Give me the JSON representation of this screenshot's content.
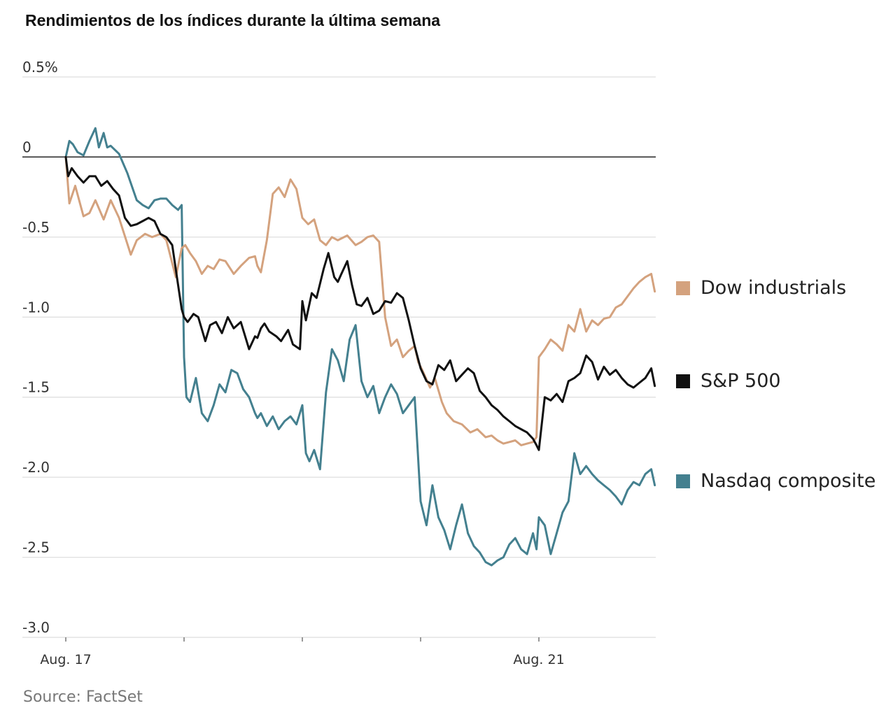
{
  "title": "Rendimientos de los índices durante la última semana",
  "source": "Source: FactSet",
  "colors": {
    "dow": "#d4a27e",
    "sp500": "#111111",
    "nasdaq": "#44808f",
    "grid": "#dddddd",
    "zero": "#222222"
  },
  "chart_data": {
    "type": "line",
    "title": "Rendimientos de los índices durante la última semana",
    "xlabel": "",
    "ylabel": "",
    "ylim": [
      -3.0,
      0.5
    ],
    "y_ticks": [
      "0.5%",
      "0",
      "-0.5",
      "-1.0",
      "-1.5",
      "-2.0",
      "-2.5",
      "-3.0"
    ],
    "y_tick_values": [
      0.5,
      0,
      -0.5,
      -1.0,
      -1.5,
      -2.0,
      -2.5,
      -3.0
    ],
    "x_domain": [
      0,
      5
    ],
    "x_tick_labels": [
      "Aug. 17",
      "",
      "",
      "",
      "Aug. 21"
    ],
    "x_tick_values": [
      0,
      1,
      2,
      3,
      4
    ],
    "grid": true,
    "legend_position": "right",
    "series": [
      {
        "name": "Dow industrials",
        "key": "dow",
        "x": [
          0,
          0.03,
          0.08,
          0.15,
          0.2,
          0.25,
          0.32,
          0.38,
          0.45,
          0.55,
          0.6,
          0.67,
          0.73,
          0.8,
          0.85,
          0.93,
          0.98,
          1.01,
          1.05,
          1.1,
          1.15,
          1.2,
          1.25,
          1.3,
          1.35,
          1.42,
          1.48,
          1.55,
          1.6,
          1.62,
          1.65,
          1.7,
          1.75,
          1.8,
          1.85,
          1.9,
          1.95,
          2.0,
          2.05,
          2.1,
          2.15,
          2.2,
          2.25,
          2.3,
          2.38,
          2.45,
          2.5,
          2.55,
          2.6,
          2.65,
          2.7,
          2.75,
          2.8,
          2.85,
          2.9,
          2.95,
          2.98,
          3.02,
          3.08,
          3.12,
          3.18,
          3.22,
          3.28,
          3.35,
          3.42,
          3.48,
          3.55,
          3.6,
          3.65,
          3.7,
          3.75,
          3.8,
          3.85,
          3.9,
          3.95,
          3.98,
          4.0,
          4.05,
          4.1,
          4.15,
          4.2,
          4.25,
          4.3,
          4.35,
          4.4,
          4.45,
          4.5,
          4.55,
          4.6,
          4.65,
          4.7,
          4.75,
          4.8,
          4.85,
          4.9,
          4.95,
          4.98
        ],
        "values": [
          0,
          -0.29,
          -0.18,
          -0.37,
          -0.35,
          -0.27,
          -0.39,
          -0.27,
          -0.38,
          -0.61,
          -0.52,
          -0.48,
          -0.5,
          -0.48,
          -0.52,
          -0.75,
          -0.57,
          -0.55,
          -0.6,
          -0.65,
          -0.73,
          -0.68,
          -0.7,
          -0.64,
          -0.65,
          -0.73,
          -0.68,
          -0.63,
          -0.62,
          -0.68,
          -0.72,
          -0.52,
          -0.23,
          -0.19,
          -0.25,
          -0.14,
          -0.2,
          -0.38,
          -0.42,
          -0.39,
          -0.52,
          -0.55,
          -0.5,
          -0.52,
          -0.49,
          -0.55,
          -0.53,
          -0.5,
          -0.49,
          -0.53,
          -1.0,
          -1.18,
          -1.14,
          -1.25,
          -1.21,
          -1.18,
          -1.28,
          -1.34,
          -1.44,
          -1.38,
          -1.53,
          -1.6,
          -1.65,
          -1.67,
          -1.72,
          -1.7,
          -1.75,
          -1.74,
          -1.77,
          -1.79,
          -1.78,
          -1.77,
          -1.8,
          -1.79,
          -1.78,
          -1.75,
          -1.25,
          -1.2,
          -1.14,
          -1.17,
          -1.21,
          -1.05,
          -1.09,
          -0.95,
          -1.09,
          -1.02,
          -1.05,
          -1.01,
          -1.0,
          -0.94,
          -0.92,
          -0.87,
          -0.82,
          -0.78,
          -0.75,
          -0.73,
          -0.84
        ]
      },
      {
        "name": "S&P 500",
        "key": "sp500",
        "x": [
          0,
          0.02,
          0.05,
          0.1,
          0.15,
          0.2,
          0.25,
          0.3,
          0.35,
          0.4,
          0.45,
          0.5,
          0.55,
          0.6,
          0.65,
          0.7,
          0.75,
          0.8,
          0.85,
          0.9,
          0.95,
          0.98,
          1.0,
          1.03,
          1.08,
          1.12,
          1.18,
          1.22,
          1.27,
          1.32,
          1.37,
          1.42,
          1.48,
          1.55,
          1.6,
          1.62,
          1.65,
          1.68,
          1.72,
          1.78,
          1.82,
          1.88,
          1.92,
          1.98,
          2.0,
          2.03,
          2.08,
          2.12,
          2.18,
          2.22,
          2.27,
          2.3,
          2.33,
          2.38,
          2.42,
          2.46,
          2.5,
          2.55,
          2.6,
          2.65,
          2.7,
          2.75,
          2.8,
          2.85,
          2.9,
          2.95,
          3.0,
          3.05,
          3.1,
          3.15,
          3.2,
          3.25,
          3.3,
          3.35,
          3.4,
          3.45,
          3.5,
          3.55,
          3.6,
          3.65,
          3.7,
          3.75,
          3.8,
          3.85,
          3.9,
          3.95,
          3.98,
          4.0,
          4.05,
          4.1,
          4.15,
          4.2,
          4.25,
          4.3,
          4.35,
          4.4,
          4.45,
          4.5,
          4.55,
          4.6,
          4.65,
          4.7,
          4.75,
          4.8,
          4.85,
          4.9,
          4.95,
          4.98
        ],
        "values": [
          0,
          -0.12,
          -0.07,
          -0.12,
          -0.16,
          -0.12,
          -0.12,
          -0.18,
          -0.15,
          -0.2,
          -0.24,
          -0.38,
          -0.43,
          -0.42,
          -0.4,
          -0.38,
          -0.4,
          -0.48,
          -0.5,
          -0.55,
          -0.8,
          -0.95,
          -1.0,
          -1.03,
          -0.98,
          -1.0,
          -1.15,
          -1.05,
          -1.03,
          -1.1,
          -1.0,
          -1.07,
          -1.03,
          -1.2,
          -1.12,
          -1.13,
          -1.07,
          -1.04,
          -1.09,
          -1.12,
          -1.15,
          -1.08,
          -1.17,
          -1.2,
          -0.9,
          -1.02,
          -0.85,
          -0.88,
          -0.7,
          -0.6,
          -0.75,
          -0.78,
          -0.73,
          -0.65,
          -0.8,
          -0.92,
          -0.93,
          -0.88,
          -0.98,
          -0.96,
          -0.9,
          -0.91,
          -0.85,
          -0.88,
          -1.02,
          -1.18,
          -1.32,
          -1.4,
          -1.42,
          -1.3,
          -1.33,
          -1.27,
          -1.4,
          -1.36,
          -1.32,
          -1.35,
          -1.46,
          -1.5,
          -1.55,
          -1.58,
          -1.62,
          -1.65,
          -1.68,
          -1.7,
          -1.72,
          -1.76,
          -1.8,
          -1.83,
          -1.5,
          -1.52,
          -1.48,
          -1.53,
          -1.4,
          -1.38,
          -1.35,
          -1.24,
          -1.28,
          -1.39,
          -1.31,
          -1.36,
          -1.33,
          -1.38,
          -1.42,
          -1.44,
          -1.41,
          -1.38,
          -1.32,
          -1.43
        ]
      },
      {
        "name": "Nasdaq composite",
        "key": "nasdaq",
        "x": [
          0,
          0.03,
          0.06,
          0.1,
          0.15,
          0.2,
          0.25,
          0.28,
          0.32,
          0.35,
          0.38,
          0.45,
          0.52,
          0.6,
          0.65,
          0.7,
          0.75,
          0.8,
          0.85,
          0.9,
          0.95,
          0.98,
          1.0,
          1.02,
          1.05,
          1.1,
          1.15,
          1.2,
          1.25,
          1.3,
          1.35,
          1.4,
          1.45,
          1.5,
          1.55,
          1.6,
          1.62,
          1.65,
          1.7,
          1.75,
          1.8,
          1.85,
          1.9,
          1.95,
          2.0,
          2.03,
          2.06,
          2.1,
          2.15,
          2.2,
          2.25,
          2.3,
          2.35,
          2.4,
          2.45,
          2.5,
          2.55,
          2.6,
          2.65,
          2.7,
          2.75,
          2.8,
          2.85,
          2.9,
          2.95,
          3.0,
          3.05,
          3.1,
          3.15,
          3.2,
          3.25,
          3.3,
          3.35,
          3.4,
          3.45,
          3.5,
          3.55,
          3.6,
          3.65,
          3.7,
          3.75,
          3.8,
          3.85,
          3.9,
          3.95,
          3.98,
          4.0,
          4.05,
          4.1,
          4.15,
          4.2,
          4.25,
          4.3,
          4.35,
          4.4,
          4.45,
          4.5,
          4.55,
          4.6,
          4.65,
          4.7,
          4.75,
          4.8,
          4.85,
          4.9,
          4.95,
          4.98
        ],
        "values": [
          0,
          0.1,
          0.08,
          0.03,
          0.01,
          0.1,
          0.18,
          0.06,
          0.15,
          0.06,
          0.07,
          0.02,
          -0.1,
          -0.27,
          -0.3,
          -0.32,
          -0.27,
          -0.26,
          -0.26,
          -0.3,
          -0.33,
          -0.3,
          -1.25,
          -1.5,
          -1.53,
          -1.38,
          -1.6,
          -1.65,
          -1.55,
          -1.42,
          -1.47,
          -1.33,
          -1.35,
          -1.45,
          -1.5,
          -1.6,
          -1.63,
          -1.6,
          -1.68,
          -1.62,
          -1.7,
          -1.65,
          -1.62,
          -1.67,
          -1.55,
          -1.85,
          -1.9,
          -1.83,
          -1.95,
          -1.47,
          -1.2,
          -1.27,
          -1.4,
          -1.14,
          -1.05,
          -1.4,
          -1.5,
          -1.43,
          -1.6,
          -1.5,
          -1.42,
          -1.48,
          -1.6,
          -1.55,
          -1.5,
          -2.15,
          -2.3,
          -2.05,
          -2.25,
          -2.33,
          -2.45,
          -2.3,
          -2.17,
          -2.35,
          -2.43,
          -2.47,
          -2.53,
          -2.55,
          -2.52,
          -2.5,
          -2.42,
          -2.38,
          -2.45,
          -2.48,
          -2.35,
          -2.45,
          -2.25,
          -2.3,
          -2.48,
          -2.35,
          -2.22,
          -2.15,
          -1.85,
          -1.98,
          -1.93,
          -1.98,
          -2.02,
          -2.05,
          -2.08,
          -2.12,
          -2.17,
          -2.08,
          -2.03,
          -2.05,
          -1.98,
          -1.95,
          -2.05
        ]
      }
    ]
  }
}
